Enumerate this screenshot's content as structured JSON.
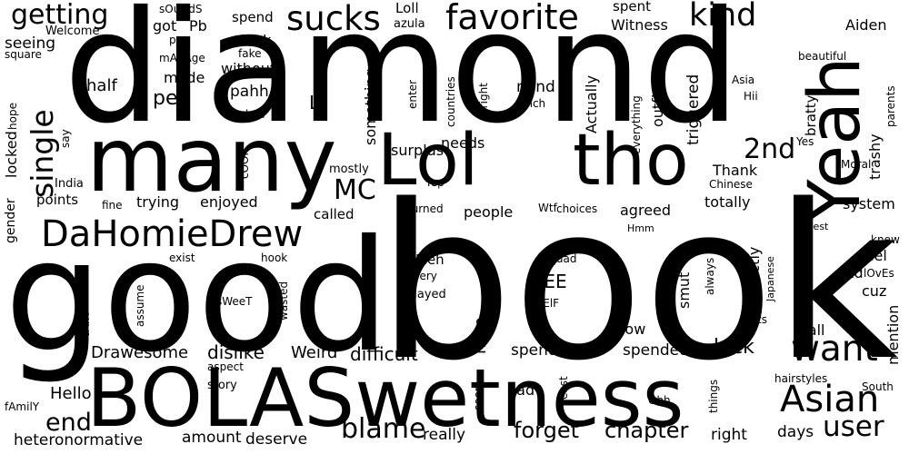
{
  "cloud": {
    "background": "#ffffff",
    "text_color": "#000000",
    "words": [
      "diamond",
      "book",
      "good",
      "many",
      "Lol",
      "tho",
      "Yeah",
      "BOLASwetness",
      "DaHomieDrew",
      "favorite",
      "sucks",
      "getting",
      "kind",
      "single",
      "want",
      "Asian",
      "user",
      "2nd",
      "MC",
      "blame",
      "end",
      "chapter",
      "forget",
      "difficult",
      "Drawesome",
      "dislike",
      "Weird",
      "luck",
      "Hello",
      "heteronormative",
      "amount",
      "deserve",
      "really",
      "right",
      "days",
      "seeing",
      "Welcome",
      "square",
      "spend",
      "think",
      "without",
      "pahh",
      "Li",
      "pet",
      "half",
      "made",
      "got",
      "Pb",
      "pm",
      "mAnAge",
      "fake",
      "looked",
      "Loll",
      "azula",
      "age",
      "spent",
      "Witness",
      "Aiden",
      "Asia",
      "Hii",
      "beautiful",
      "mind",
      "inch",
      "Actually",
      "outfits",
      "triggered",
      "bratty",
      "trashy",
      "parents",
      "Yes",
      "Moral",
      "surplus",
      "needs",
      "mostly",
      "Thank",
      "Chinese",
      "totally",
      "system",
      "Yep",
      "Wtf",
      "choices",
      "called",
      "people",
      "agreed",
      "India",
      "points",
      "fine",
      "trying",
      "enjoyed",
      "turned",
      "Hmm",
      "Best",
      "knew",
      "feel",
      "lOvEs",
      "xd",
      "cuz",
      "Meh",
      "sEE",
      "sElF",
      "squad",
      "every",
      "played",
      "surely",
      "liking",
      "smut",
      "always",
      "Exactly",
      "Japanese",
      "gets",
      "call",
      "mention",
      "know",
      "spending",
      "spended",
      "hate",
      "hairstyles",
      "South",
      "east",
      "Ohh",
      "things",
      "soon",
      "bad",
      "story",
      "aspect",
      "exist",
      "hook",
      "assume",
      "sWeeT",
      "wasted",
      "cAnT",
      "fAmilY",
      "gender",
      "locked",
      "hope",
      "say",
      "cOOl",
      "sOuNdS",
      "something",
      "countries",
      "alright",
      "enter",
      "everything"
    ]
  }
}
